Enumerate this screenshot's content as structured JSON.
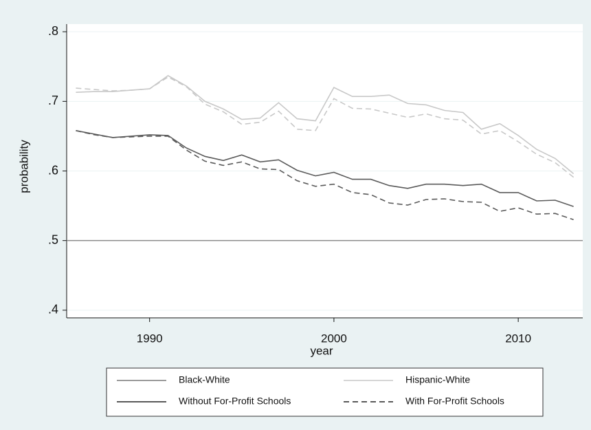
{
  "chart_data": {
    "type": "line",
    "x_label": "year",
    "y_label": "probability",
    "x": [
      1986,
      1987,
      1988,
      1989,
      1990,
      1991,
      1992,
      1993,
      1994,
      1995,
      1996,
      1997,
      1998,
      1999,
      2000,
      2001,
      2002,
      2003,
      2004,
      2005,
      2006,
      2007,
      2008,
      2009,
      2010,
      2011,
      2012,
      2013
    ],
    "series": [
      {
        "color": "#c8c8c8",
        "dash": false,
        "values": [
          0.713,
          0.714,
          0.714,
          0.716,
          0.718,
          0.737,
          0.722,
          0.7,
          0.689,
          0.674,
          0.676,
          0.698,
          0.675,
          0.672,
          0.72,
          0.707,
          0.707,
          0.709,
          0.697,
          0.695,
          0.687,
          0.684,
          0.66,
          0.668,
          0.651,
          0.631,
          0.618,
          0.596
        ]
      },
      {
        "color": "#c8c8c8",
        "dash": true,
        "values": [
          0.719,
          0.717,
          0.715,
          0.716,
          0.718,
          0.735,
          0.721,
          0.696,
          0.685,
          0.667,
          0.67,
          0.686,
          0.66,
          0.658,
          0.704,
          0.69,
          0.689,
          0.683,
          0.677,
          0.682,
          0.675,
          0.673,
          0.653,
          0.658,
          0.642,
          0.624,
          0.612,
          0.591
        ]
      },
      {
        "color": "#5a5a5a",
        "dash": false,
        "values": [
          0.658,
          0.653,
          0.648,
          0.65,
          0.652,
          0.651,
          0.633,
          0.621,
          0.615,
          0.623,
          0.613,
          0.616,
          0.601,
          0.593,
          0.598,
          0.588,
          0.588,
          0.579,
          0.575,
          0.581,
          0.581,
          0.579,
          0.581,
          0.569,
          0.569,
          0.557,
          0.558,
          0.549
        ]
      },
      {
        "color": "#5a5a5a",
        "dash": true,
        "values": [
          0.658,
          0.652,
          0.648,
          0.649,
          0.65,
          0.65,
          0.63,
          0.614,
          0.608,
          0.613,
          0.603,
          0.602,
          0.586,
          0.578,
          0.581,
          0.569,
          0.566,
          0.554,
          0.551,
          0.559,
          0.56,
          0.556,
          0.555,
          0.542,
          0.547,
          0.538,
          0.539,
          0.53
        ]
      }
    ],
    "legend": [
      {
        "label": "Black-White",
        "color": "#7a7a7a",
        "dash": false
      },
      {
        "label": "Hispanic-White",
        "color": "#c8c8c8",
        "dash": false
      },
      {
        "label": "Without For-Profit Schools",
        "color": "#222222",
        "dash": false
      },
      {
        "label": "With For-Profit Schools",
        "color": "#222222",
        "dash": true
      }
    ],
    "hline": 0.5,
    "hline_color": "#8a8a8a",
    "xlim": [
      1985.5,
      2013.5
    ],
    "xticks": [
      1990,
      2000,
      2010
    ],
    "ylim": [
      0.389,
      0.811
    ],
    "yticks": [
      {
        "value": 0.4,
        "label": ".4"
      },
      {
        "value": 0.5,
        "label": ".5"
      },
      {
        "value": 0.6,
        "label": ".6"
      },
      {
        "value": 0.7,
        "label": ".7"
      },
      {
        "value": 0.8,
        "label": ".8"
      }
    ],
    "grid": true,
    "grid_color": "#eaf2f3"
  }
}
